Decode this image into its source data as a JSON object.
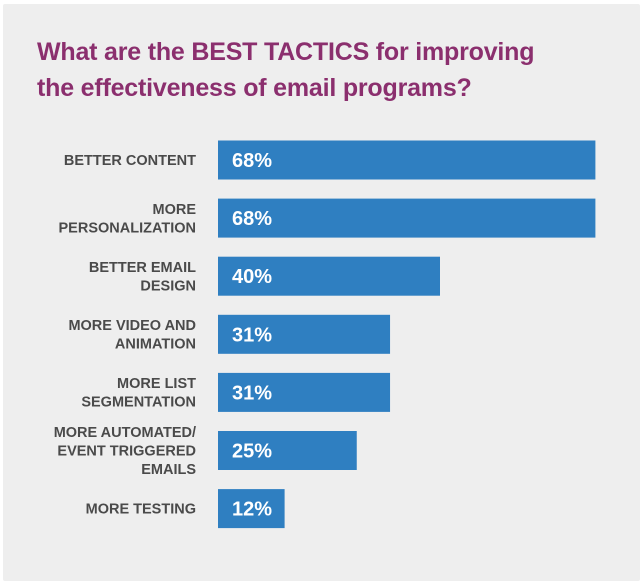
{
  "chart_data": {
    "type": "bar",
    "orientation": "horizontal",
    "title_lines": [
      "What are the BEST TACTICS for improving",
      "the effectiveness of email programs?"
    ],
    "categories": [
      [
        "BETTER CONTENT"
      ],
      [
        "MORE",
        "PERSONALIZATION"
      ],
      [
        "BETTER EMAIL",
        "DESIGN"
      ],
      [
        "MORE VIDEO AND",
        "ANIMATION"
      ],
      [
        "MORE LIST",
        "SEGMENTATION"
      ],
      [
        "MORE AUTOMATED/",
        "EVENT TRIGGERED",
        "EMAILS"
      ],
      [
        "MORE TESTING"
      ]
    ],
    "values": [
      68,
      68,
      40,
      31,
      31,
      25,
      12
    ],
    "value_labels": [
      "68%",
      "68%",
      "40%",
      "31%",
      "31%",
      "25%",
      "12%"
    ],
    "xlim": [
      0,
      100
    ],
    "grid": false,
    "legend": "none",
    "colors": {
      "bar": "#2f7fc1",
      "title": "#8b2f6e",
      "category_text": "#4a4a4a",
      "value_text": "#ffffff",
      "background": "#eeeeee"
    }
  }
}
